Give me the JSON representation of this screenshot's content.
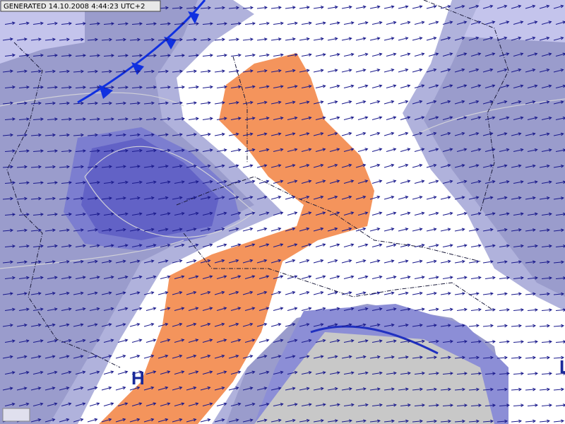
{
  "header": {
    "stamp": "GENERATED 14.10.2008 4:44:23 UTC+2"
  },
  "labels": {
    "high": "H",
    "edge": "L"
  }
}
